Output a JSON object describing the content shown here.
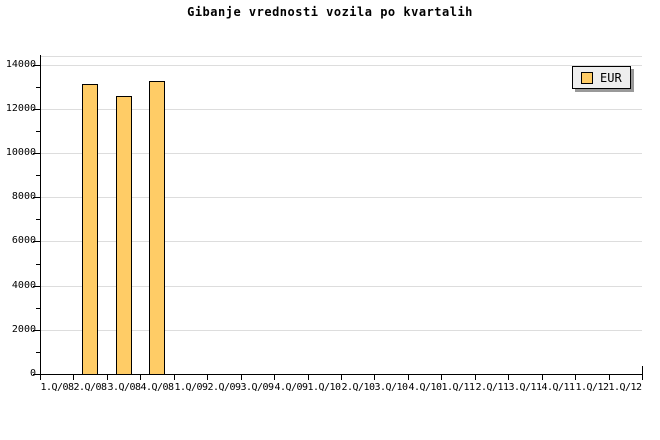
{
  "title": "Gibanje vrednosti vozila po kvartalih",
  "legend": {
    "label": "EUR"
  },
  "colors": {
    "bar_fill": "#FFCC66",
    "bar_border": "#000000",
    "grid": "#DDDDDD",
    "axis": "#000000",
    "legend_bg": "#EEEEEE",
    "legend_shadow": "#999999",
    "background": "#FFFFFF"
  },
  "chart_data": {
    "type": "bar",
    "title": "Gibanje vrednosti vozila po kvartalih",
    "categories": [
      "1.Q/08",
      "2.Q/08",
      "3.Q/08",
      "4.Q/08",
      "1.Q/09",
      "2.Q/09",
      "3.Q/09",
      "4.Q/09",
      "1.Q/10",
      "2.Q/10",
      "3.Q/10",
      "4.Q/10",
      "1.Q/11",
      "2.Q/11",
      "3.Q/11",
      "4.Q/11",
      "1.Q/12",
      "1.Q/12"
    ],
    "series": [
      {
        "name": "EUR",
        "values": [
          null,
          13100,
          12600,
          13250,
          null,
          null,
          null,
          null,
          null,
          null,
          null,
          null,
          null,
          null,
          null,
          null,
          null,
          null
        ]
      }
    ],
    "xlabel": "",
    "ylabel": "",
    "ylim": [
      0,
      14000
    ],
    "y_ticks": [
      0,
      2000,
      4000,
      6000,
      8000,
      10000,
      12000,
      14000
    ],
    "y_minor_step": 1000,
    "grid": "horizontal-major",
    "legend_position": "top-right"
  }
}
